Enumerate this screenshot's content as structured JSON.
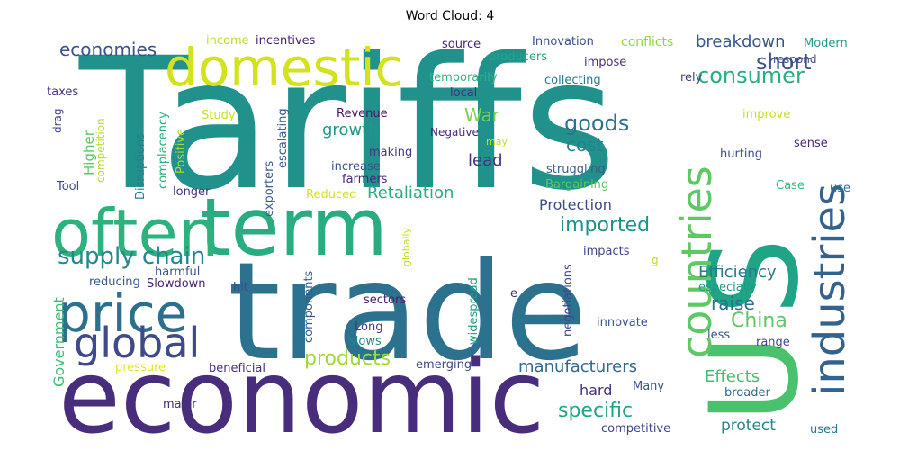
{
  "chart_data": {
    "type": "wordcloud",
    "title": "Word Cloud: 4",
    "words": [
      {
        "text": "Tariffs",
        "color": "#21918c"
      },
      {
        "text": "trade",
        "color": "#2c728e"
      },
      {
        "text": "economic",
        "color": "#472d7b"
      },
      {
        "text": "term",
        "color": "#27ad81"
      },
      {
        "text": "often",
        "color": "#2db27d"
      },
      {
        "text": "domestic",
        "color": "#d2e21b"
      },
      {
        "text": "U",
        "color": "#4ac16d"
      },
      {
        "text": "S",
        "color": "#20a486"
      },
      {
        "text": "industries",
        "color": "#33638d"
      },
      {
        "text": "countries",
        "color": "#5ec962"
      },
      {
        "text": "price",
        "color": "#2d708e"
      },
      {
        "text": "global",
        "color": "#3e4a89"
      },
      {
        "text": "supply chain",
        "color": "#24878e"
      },
      {
        "text": "goods",
        "color": "#2c728e"
      },
      {
        "text": "consumer",
        "color": "#28ae80"
      },
      {
        "text": "short",
        "color": "#3b528b"
      },
      {
        "text": "economies",
        "color": "#3b528b"
      },
      {
        "text": "War",
        "color": "#7ad151"
      },
      {
        "text": "growth",
        "color": "#1f988b"
      },
      {
        "text": "Retaliation",
        "color": "#29af7f"
      },
      {
        "text": "imported",
        "color": "#21918c"
      },
      {
        "text": "products",
        "color": "#a0da39"
      },
      {
        "text": "manufacturers",
        "color": "#31688e"
      },
      {
        "text": "specific",
        "color": "#21a685"
      },
      {
        "text": "China",
        "color": "#5ec962"
      },
      {
        "text": "raise",
        "color": "#2e6e8e"
      },
      {
        "text": "Efficiency",
        "color": "#2a788e"
      },
      {
        "text": "Protection",
        "color": "#3e4a89"
      },
      {
        "text": "cost",
        "color": "#26828e"
      },
      {
        "text": "lead",
        "color": "#46327e"
      },
      {
        "text": "breakdown",
        "color": "#39568c"
      },
      {
        "text": "Effects",
        "color": "#44bf70"
      },
      {
        "text": "protect",
        "color": "#25858e"
      },
      {
        "text": "hard",
        "color": "#46307e"
      },
      {
        "text": "Government",
        "color": "#3fbc73"
      },
      {
        "text": "Higher",
        "color": "#5ec962"
      },
      {
        "text": "incentives",
        "color": "#482475"
      },
      {
        "text": "income",
        "color": "#bddf26"
      },
      {
        "text": "source",
        "color": "#482878"
      },
      {
        "text": "producers",
        "color": "#22a785"
      },
      {
        "text": "Innovation",
        "color": "#3b528b"
      },
      {
        "text": "conflicts",
        "color": "#8fd744"
      },
      {
        "text": "Modern",
        "color": "#1e9b8a"
      },
      {
        "text": "respond",
        "color": "#3e4c8a"
      },
      {
        "text": "impose",
        "color": "#472f7d"
      },
      {
        "text": "temporarily",
        "color": "#2fb47c"
      },
      {
        "text": "collecting",
        "color": "#2a788e"
      },
      {
        "text": "rely",
        "color": "#433e85"
      },
      {
        "text": "local",
        "color": "#46307e"
      },
      {
        "text": "taxes",
        "color": "#46327e"
      },
      {
        "text": "drag",
        "color": "#414487"
      },
      {
        "text": "competition",
        "color": "#b5de2b"
      },
      {
        "text": "escalating",
        "color": "#39568c"
      },
      {
        "text": "complacency",
        "color": "#29af7f"
      },
      {
        "text": "Positive",
        "color": "#a8db34"
      },
      {
        "text": "Disruptions",
        "color": "#277f8e"
      },
      {
        "text": "Study",
        "color": "#cae11f"
      },
      {
        "text": "Revenue",
        "color": "#48186a"
      },
      {
        "text": "Negative",
        "color": "#482878"
      },
      {
        "text": "may",
        "color": "#c2df23"
      },
      {
        "text": "improve",
        "color": "#c8e020"
      },
      {
        "text": "making",
        "color": "#453781"
      },
      {
        "text": "increase",
        "color": "#3b528b"
      },
      {
        "text": "farmers",
        "color": "#482878"
      },
      {
        "text": "exporters",
        "color": "#365d8d"
      },
      {
        "text": "struggling",
        "color": "#355f8d"
      },
      {
        "text": "Bargaining",
        "color": "#5cc863"
      },
      {
        "text": "hurting",
        "color": "#3e4c8a"
      },
      {
        "text": "sense",
        "color": "#482878"
      },
      {
        "text": "Case",
        "color": "#35b779"
      },
      {
        "text": "use",
        "color": "#2c728e"
      },
      {
        "text": "Tool",
        "color": "#3f4889"
      },
      {
        "text": "longer",
        "color": "#46327e"
      },
      {
        "text": "Reduced",
        "color": "#d8e219"
      },
      {
        "text": "globally",
        "color": "#c2df23"
      },
      {
        "text": "impacts",
        "color": "#3f4788"
      },
      {
        "text": "g",
        "color": "#bddf26"
      },
      {
        "text": "especially",
        "color": "#1f9a8a"
      },
      {
        "text": "harmful",
        "color": "#3a548c"
      },
      {
        "text": "Slowdown",
        "color": "#482173"
      },
      {
        "text": "reducing",
        "color": "#38588c"
      },
      {
        "text": "hit",
        "color": "#3e4a89"
      },
      {
        "text": "components",
        "color": "#365c8d"
      },
      {
        "text": "widespread",
        "color": "#1fa187"
      },
      {
        "text": "negotiations",
        "color": "#404688"
      },
      {
        "text": "e",
        "color": "#472d7b"
      },
      {
        "text": "sectors",
        "color": "#481b6d"
      },
      {
        "text": "Long",
        "color": "#453781"
      },
      {
        "text": "slows",
        "color": "#24868e"
      },
      {
        "text": "innovate",
        "color": "#3b528b"
      },
      {
        "text": "less",
        "color": "#39568c"
      },
      {
        "text": "range",
        "color": "#3f4889"
      },
      {
        "text": "pressure",
        "color": "#e2e418"
      },
      {
        "text": "beneficial",
        "color": "#472c7a"
      },
      {
        "text": "emerging",
        "color": "#3e4a89"
      },
      {
        "text": "Many",
        "color": "#3b528b"
      },
      {
        "text": "broader",
        "color": "#2f6c8e"
      },
      {
        "text": "major",
        "color": "#472d7b"
      },
      {
        "text": "competitive",
        "color": "#404688"
      },
      {
        "text": "used",
        "color": "#2a788e"
      }
    ]
  }
}
